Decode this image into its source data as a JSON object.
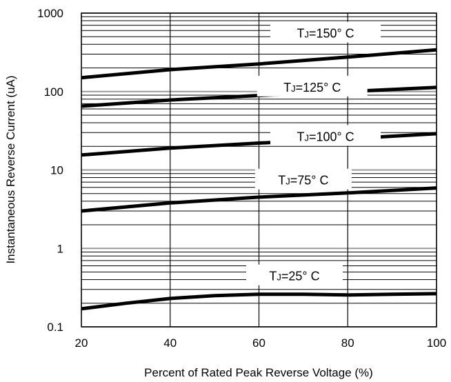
{
  "chart_data": {
    "type": "line",
    "title": "",
    "xlabel": "Percent of Rated Peak Reverse Voltage (%)",
    "ylabel": "Instantaneous Reverse Current (uA)",
    "x_scale": "linear",
    "y_scale": "log",
    "xlim": [
      20,
      100
    ],
    "ylim": [
      0.1,
      1000
    ],
    "grid": true,
    "x_ticks": [
      20,
      40,
      60,
      80,
      100
    ],
    "x_tick_labels": [
      "20",
      "40",
      "60",
      "80",
      "100"
    ],
    "y_ticks": [
      0.1,
      1,
      10,
      100,
      1000
    ],
    "y_tick_labels": [
      "0.1",
      "1",
      "10",
      "100",
      "1000"
    ],
    "series": [
      {
        "name": "TJ=150° C",
        "label_main": "T",
        "label_sub": "J",
        "label_rest": "=150° C",
        "label_at": [
          75,
          560
        ],
        "x": [
          20,
          40,
          60,
          80,
          100
        ],
        "y": [
          150,
          190,
          225,
          275,
          340
        ]
      },
      {
        "name": "TJ=125° C",
        "label_main": "T",
        "label_sub": "J",
        "label_rest": "=125° C",
        "label_at": [
          72,
          115
        ],
        "x": [
          20,
          40,
          60,
          80,
          100
        ],
        "y": [
          65,
          78,
          89,
          100,
          113
        ]
      },
      {
        "name": "TJ=100° C",
        "label_main": "T",
        "label_sub": "J",
        "label_rest": "=100° C",
        "label_at": [
          75,
          27
        ],
        "x": [
          20,
          40,
          60,
          80,
          100
        ],
        "y": [
          15.5,
          19,
          22,
          25,
          29
        ]
      },
      {
        "name": "TJ=75° C",
        "label_main": "T",
        "label_sub": "J",
        "label_rest": "=75° C",
        "label_at": [
          70,
          7.5
        ],
        "x": [
          20,
          40,
          60,
          80,
          100
        ],
        "y": [
          3.0,
          3.8,
          4.5,
          5.1,
          5.9
        ]
      },
      {
        "name": "TJ=25° C",
        "label_main": "T",
        "label_sub": "J",
        "label_rest": "=25° C",
        "label_at": [
          68,
          0.45
        ],
        "x": [
          20,
          30,
          40,
          50,
          60,
          70,
          80,
          90,
          100
        ],
        "y": [
          0.17,
          0.2,
          0.23,
          0.25,
          0.26,
          0.26,
          0.255,
          0.26,
          0.265
        ]
      }
    ]
  }
}
